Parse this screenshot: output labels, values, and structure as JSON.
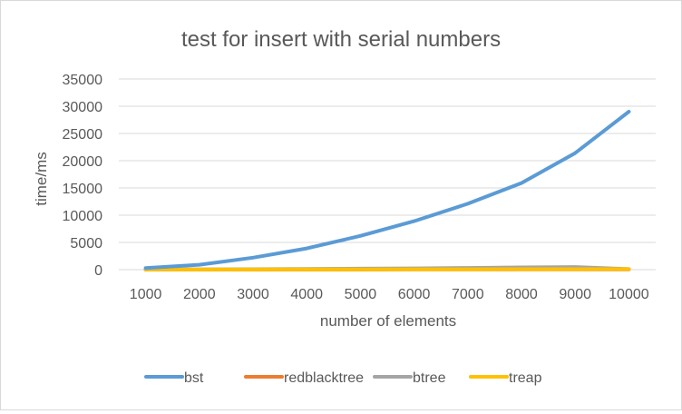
{
  "chart_data": {
    "type": "line",
    "title": "test for insert with serial numbers",
    "xlabel": "number of elements",
    "ylabel": "time/ms",
    "categories": [
      "1000",
      "2000",
      "3000",
      "4000",
      "5000",
      "6000",
      "7000",
      "8000",
      "9000",
      "10000"
    ],
    "ylim": [
      0,
      35000
    ],
    "yticks": [
      0,
      5000,
      10000,
      15000,
      20000,
      25000,
      30000,
      35000
    ],
    "grid": true,
    "legend_position": "bottom",
    "series": [
      {
        "name": "bst",
        "color": "#5b9bd5",
        "values": [
          300,
          900,
          2200,
          3900,
          6200,
          8900,
          12100,
          15900,
          21400,
          29000
        ]
      },
      {
        "name": "redblacktree",
        "color": "#ed7d31",
        "values": [
          5,
          10,
          15,
          20,
          25,
          30,
          35,
          40,
          45,
          50
        ]
      },
      {
        "name": "btree",
        "color": "#a5a5a5",
        "values": [
          20,
          40,
          80,
          120,
          180,
          240,
          320,
          420,
          480,
          100
        ]
      },
      {
        "name": "treap",
        "color": "#ffc000",
        "values": [
          10,
          20,
          30,
          40,
          50,
          60,
          70,
          80,
          90,
          100
        ]
      }
    ]
  }
}
